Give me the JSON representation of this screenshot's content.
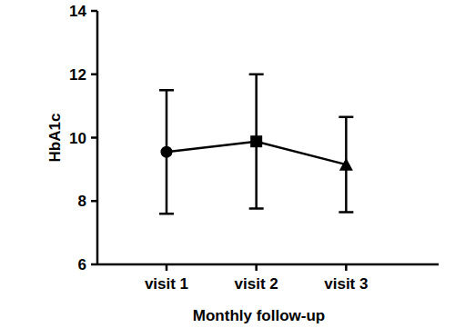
{
  "chart_data": {
    "type": "line",
    "x_label": "Monthly follow-up",
    "y_label": "HbA1c",
    "categories": [
      "visit 1",
      "visit 2",
      "visit 3"
    ],
    "values": [
      9.55,
      9.88,
      9.15
    ],
    "errors": [
      1.95,
      2.12,
      1.5
    ],
    "color": "#000000",
    "marker": "cycle",
    "ylim": [
      6,
      14
    ],
    "yticks": [
      6,
      8,
      10,
      12,
      14
    ],
    "grid": false
  }
}
